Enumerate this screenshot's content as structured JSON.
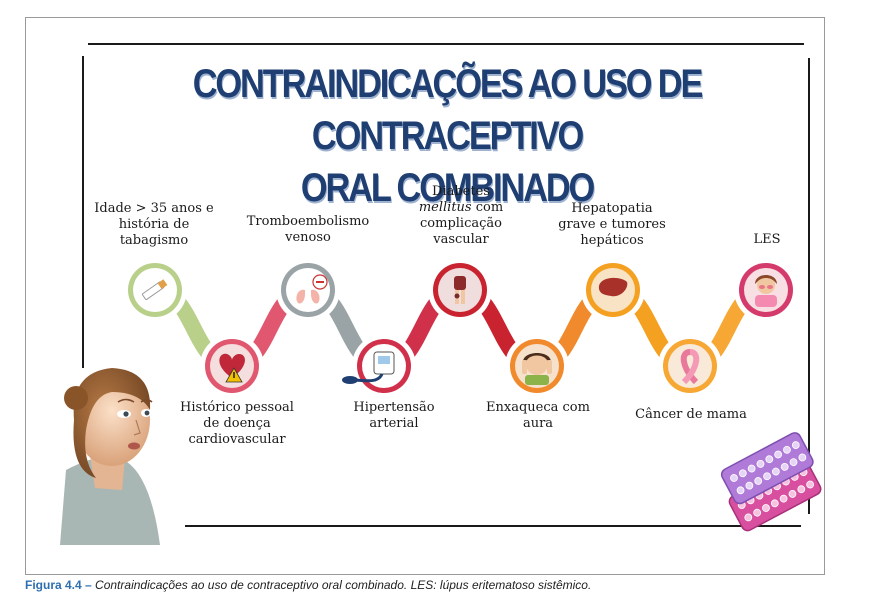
{
  "title": {
    "line1": "CONTRAINDICAÇÕES AO USO DE CONTRACEPTIVO",
    "line2": "ORAL COMBINADO"
  },
  "nodes": [
    {
      "label": [
        "Idade > 35 anos e",
        "história de",
        "tabagismo"
      ],
      "icon": "cigarette-icon",
      "color": "#b9d08a"
    },
    {
      "label": [
        "Histórico pessoal",
        "de doença",
        "cardiovascular"
      ],
      "icon": "heart-warning-icon",
      "color": "#e0576f"
    },
    {
      "label": [
        "Tromboembolismo",
        "venoso"
      ],
      "icon": "lungs-clot-icon",
      "color": "#9aa3a6"
    },
    {
      "label": [
        "Hipertensão",
        "arterial"
      ],
      "icon": "blood-pressure-monitor-icon",
      "color": "#d1304a"
    },
    {
      "label": [
        "Diabetes",
        "mellitus com",
        "complicação",
        "vascular"
      ],
      "icon": "diabetic-leg-icon",
      "color": "#c9232f"
    },
    {
      "label": [
        "Enxaqueca com",
        "aura"
      ],
      "icon": "headache-person-icon",
      "color": "#f08a2c"
    },
    {
      "label": [
        "Hepatopatia",
        "grave e tumores",
        "hepáticos"
      ],
      "icon": "liver-icon",
      "color": "#f4a020"
    },
    {
      "label": [
        "Câncer de mama"
      ],
      "icon": "pink-ribbon-icon",
      "color": "#f7a733"
    },
    {
      "label": [
        "LES"
      ],
      "icon": "lupus-woman-icon",
      "color": "#d43a6b"
    }
  ],
  "caption": {
    "figure": "Figura 4.4 –",
    "text": "Contraindicações ao uso de contraceptivo oral combinado. LES: lúpus eritematoso sistêmico."
  }
}
